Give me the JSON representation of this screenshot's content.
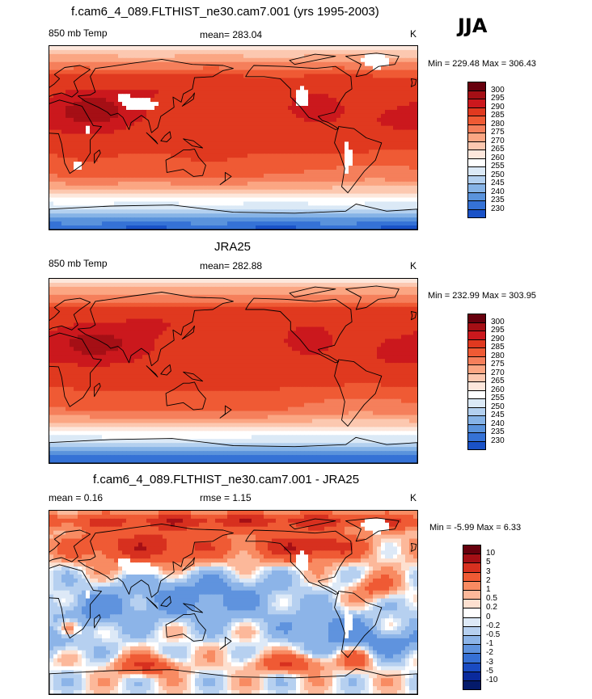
{
  "season": "JJA",
  "panels": [
    {
      "title": "f.cam6_4_089.FLTHIST_ne30.cam7.001 (yrs 1995-2003)",
      "left_label": "850 mb Temp",
      "center_label": "mean= 283.04",
      "units": "K",
      "min_max": "Min = 229.48 Max = 306.43",
      "colorbar_labels": [
        "300",
        "295",
        "290",
        "285",
        "280",
        "275",
        "270",
        "265",
        "260",
        "255",
        "250",
        "245",
        "240",
        "235",
        "230"
      ],
      "has_missing": true
    },
    {
      "title": "JRA25",
      "left_label": "850 mb Temp",
      "center_label": "mean= 282.88",
      "units": "K",
      "min_max": "Min = 232.99 Max = 303.95",
      "colorbar_labels": [
        "300",
        "295",
        "290",
        "285",
        "280",
        "275",
        "270",
        "265",
        "260",
        "255",
        "250",
        "245",
        "240",
        "235",
        "230"
      ],
      "has_missing": false
    },
    {
      "title": "f.cam6_4_089.FLTHIST_ne30.cam7.001 - JRA25",
      "left_label": "mean =   0.16",
      "center_label": "rmse =   1.15",
      "units": "K",
      "min_max": "Min =  -5.99 Max =   6.33",
      "colorbar_labels": [
        "10",
        "5",
        "3",
        "2",
        "1",
        "0.5",
        "0.2",
        "0",
        "-0.2",
        "-0.5",
        "-1",
        "-2",
        "-3",
        "-5",
        "-10"
      ],
      "has_missing": true
    }
  ],
  "colors": {
    "abs_scale": [
      "#67000d",
      "#a50f15",
      "#cb181d",
      "#e0391f",
      "#ef5a34",
      "#f57f5b",
      "#fba683",
      "#fcc8b0",
      "#fde7dc",
      "#ffffff",
      "#dbe9f6",
      "#b3d0ef",
      "#86b3e6",
      "#5a93dc",
      "#3572d6",
      "#1a52c7",
      "#0d35ad",
      "#08228f",
      "#04136b"
    ],
    "diff_scale": [
      "#67000d",
      "#a50f15",
      "#d7301f",
      "#ef5a34",
      "#f88b62",
      "#fcb89a",
      "#fde0d0",
      "#ffffff",
      "#dde9f7",
      "#b6d0f0",
      "#8cb4e8",
      "#5f93de",
      "#3670d5",
      "#1a4bc2",
      "#0a2a9c",
      "#041a6b"
    ],
    "missing": "#ffffff"
  }
}
